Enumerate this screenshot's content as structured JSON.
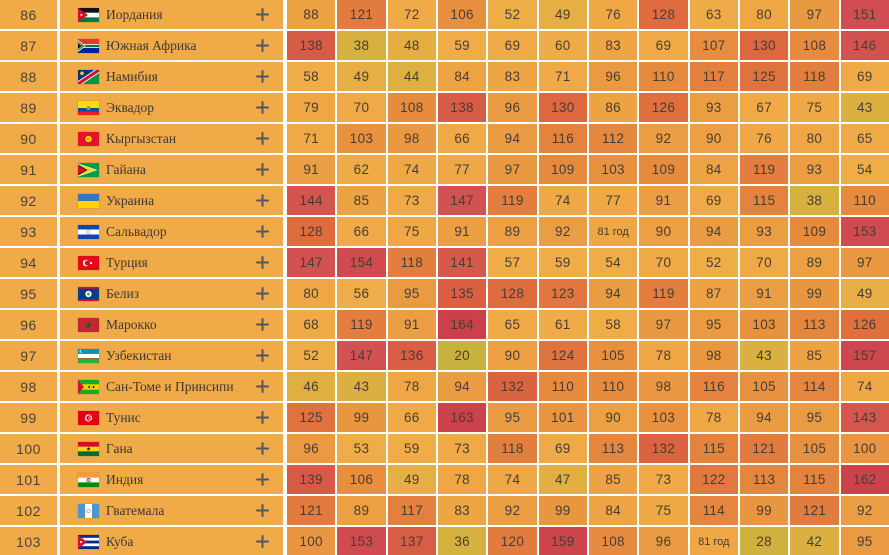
{
  "palette": {
    "page_background": "#FFFFFF",
    "row_background": "#F0AA48",
    "separator": "#FFFFFF",
    "rank_text": "#4A4239",
    "country_text": "#3E3832",
    "value_text": "#473E33",
    "plus_icon": "#53545C",
    "heat_stops": [
      [
        20,
        "#C9B13E"
      ],
      [
        38,
        "#D6B13F"
      ],
      [
        46,
        "#DFAF41"
      ],
      [
        52,
        "#EFAD48"
      ],
      [
        80,
        "#EFA745"
      ],
      [
        95,
        "#EA9B42"
      ],
      [
        110,
        "#E68A3E"
      ],
      [
        121,
        "#E27B3E"
      ],
      [
        132,
        "#DC633F"
      ],
      [
        141,
        "#D5584A"
      ],
      [
        148,
        "#D25052"
      ],
      [
        165,
        "#CB3F4A"
      ]
    ]
  },
  "table": {
    "value_columns": 12,
    "expand_icon": "plus",
    "rows": [
      {
        "rank": "86",
        "country": "Иордания",
        "flag": "jordan",
        "values": [
          "88",
          "121",
          "72",
          "106",
          "52",
          "49",
          "76",
          "128",
          "63",
          "80",
          "97",
          "151"
        ]
      },
      {
        "rank": "87",
        "country": "Южная Африка",
        "flag": "south-africa",
        "values": [
          "138",
          "38",
          "48",
          "59",
          "69",
          "60",
          "83",
          "69",
          "107",
          "130",
          "108",
          "146"
        ]
      },
      {
        "rank": "88",
        "country": "Намибия",
        "flag": "namibia",
        "values": [
          "58",
          "49",
          "44",
          "84",
          "83",
          "71",
          "96",
          "110",
          "117",
          "125",
          "118",
          "69"
        ]
      },
      {
        "rank": "89",
        "country": "Эквадор",
        "flag": "ecuador",
        "values": [
          "79",
          "70",
          "108",
          "138",
          "96",
          "130",
          "86",
          "126",
          "93",
          "67",
          "75",
          "43"
        ]
      },
      {
        "rank": "90",
        "country": "Кыргызстан",
        "flag": "kyrgyzstan",
        "values": [
          "71",
          "103",
          "98",
          "66",
          "94",
          "116",
          "112",
          "92",
          "90",
          "76",
          "80",
          "65"
        ]
      },
      {
        "rank": "91",
        "country": "Гайана",
        "flag": "guyana",
        "values": [
          "91",
          "62",
          "74",
          "77",
          "97",
          "109",
          "103",
          "109",
          "84",
          "119",
          "93",
          "54"
        ]
      },
      {
        "rank": "92",
        "country": "Украина",
        "flag": "ukraine",
        "values": [
          "144",
          "85",
          "73",
          "147",
          "119",
          "74",
          "77",
          "91",
          "69",
          "115",
          "38",
          "110"
        ]
      },
      {
        "rank": "93",
        "country": "Сальвадор",
        "flag": "el-salvador",
        "values": [
          "128",
          "66",
          "75",
          "91",
          "89",
          "92",
          "81 год",
          "90",
          "94",
          "93",
          "109",
          "153"
        ]
      },
      {
        "rank": "94",
        "country": "Турция",
        "flag": "turkey",
        "values": [
          "147",
          "154",
          "118",
          "141",
          "57",
          "59",
          "54",
          "70",
          "52",
          "70",
          "89",
          "97"
        ]
      },
      {
        "rank": "95",
        "country": "Белиз",
        "flag": "belize",
        "values": [
          "80",
          "56",
          "95",
          "135",
          "128",
          "123",
          "94",
          "119",
          "87",
          "91",
          "99",
          "49"
        ]
      },
      {
        "rank": "96",
        "country": "Марокко",
        "flag": "morocco",
        "values": [
          "68",
          "119",
          "91",
          "164",
          "65",
          "61",
          "58",
          "97",
          "95",
          "103",
          "113",
          "126"
        ]
      },
      {
        "rank": "97",
        "country": "Узбекистан",
        "flag": "uzbekistan",
        "values": [
          "52",
          "147",
          "136",
          "20",
          "90",
          "124",
          "105",
          "78",
          "98",
          "43",
          "85",
          "157"
        ]
      },
      {
        "rank": "98",
        "country": "Сан-Томе и Принсипи",
        "flag": "sao-tome",
        "values": [
          "46",
          "43",
          "78",
          "94",
          "132",
          "110",
          "110",
          "98",
          "116",
          "105",
          "114",
          "74"
        ]
      },
      {
        "rank": "99",
        "country": "Тунис",
        "flag": "tunisia",
        "values": [
          "125",
          "99",
          "66",
          "163",
          "95",
          "101",
          "90",
          "103",
          "78",
          "94",
          "95",
          "143"
        ]
      },
      {
        "rank": "100",
        "country": "Гана",
        "flag": "ghana",
        "values": [
          "96",
          "53",
          "59",
          "73",
          "118",
          "69",
          "113",
          "132",
          "115",
          "121",
          "105",
          "100"
        ]
      },
      {
        "rank": "101",
        "country": "Индия",
        "flag": "india",
        "values": [
          "139",
          "106",
          "49",
          "78",
          "74",
          "47",
          "85",
          "73",
          "122",
          "113",
          "115",
          "162"
        ]
      },
      {
        "rank": "102",
        "country": "Гватемала",
        "flag": "guatemala",
        "values": [
          "121",
          "89",
          "117",
          "83",
          "92",
          "99",
          "84",
          "75",
          "114",
          "99",
          "121",
          "92"
        ]
      },
      {
        "rank": "103",
        "country": "Куба",
        "flag": "cuba",
        "values": [
          "100",
          "153",
          "137",
          "36",
          "120",
          "159",
          "108",
          "96",
          "81 год",
          "28",
          "42",
          "95"
        ]
      }
    ]
  }
}
